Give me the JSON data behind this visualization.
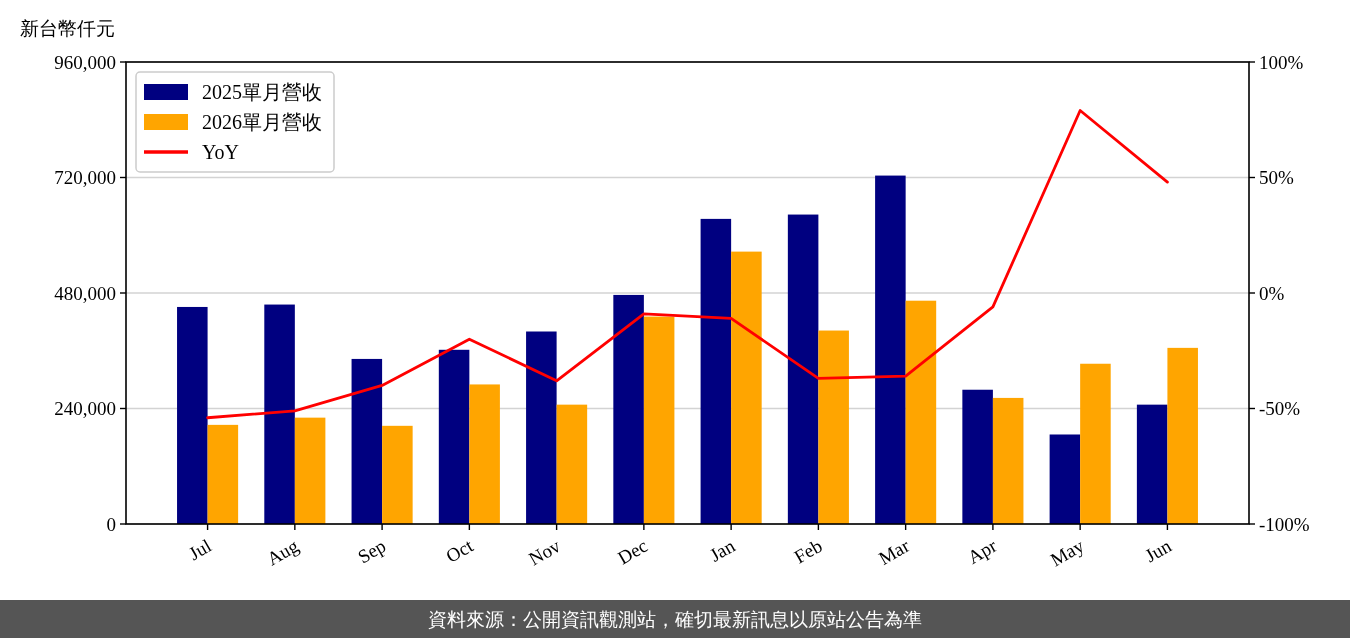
{
  "chart_data": {
    "type": "bar",
    "ylabel": "新台幣仟元",
    "categories": [
      "Jul",
      "Aug",
      "Sep",
      "Oct",
      "Nov",
      "Dec",
      "Jan",
      "Feb",
      "Mar",
      "Apr",
      "May",
      "Jun"
    ],
    "series": [
      {
        "name": "2025單月營收",
        "color": "#000080",
        "values": [
          451000,
          456000,
          343000,
          362000,
          400000,
          476000,
          634000,
          643000,
          724000,
          279000,
          186000,
          248000
        ]
      },
      {
        "name": "2026單月營收",
        "color": "#ffa500",
        "values": [
          206000,
          221000,
          204000,
          290000,
          248000,
          431000,
          566000,
          402000,
          464000,
          262000,
          333000,
          366000
        ]
      },
      {
        "name": "YoY",
        "type": "line",
        "axis": "y2",
        "color": "#ff0000",
        "values": [
          -54,
          -51,
          -40,
          -20,
          -38,
          -9,
          -11,
          -37,
          -36,
          -6,
          79,
          48
        ]
      }
    ],
    "ylim": [
      0,
      960000
    ],
    "yticks": [
      0,
      {
        "value": 240000,
        "label": "240,000"
      },
      {
        "value": 480000,
        "label": "480,000"
      },
      {
        "value": 720000,
        "label": "720,000"
      },
      {
        "value": 960000,
        "label": "960,000"
      }
    ],
    "y2lim": [
      -100,
      100
    ],
    "y2ticks": [
      {
        "value": -100,
        "label": "-100%"
      },
      {
        "value": -50,
        "label": "-50%"
      },
      {
        "value": 0,
        "label": "0%"
      },
      {
        "value": 50,
        "label": "50%"
      },
      {
        "value": 100,
        "label": "100%"
      }
    ],
    "grid": "y",
    "legend": "top left",
    "marker": "none",
    "line_style": "solid",
    "annotations": [
      "資料來源：公開資訊觀測站，確切最新訊息以原站公告為準"
    ]
  }
}
